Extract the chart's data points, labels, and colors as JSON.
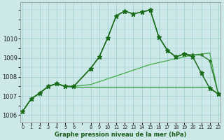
{
  "background_color": "#cce8e8",
  "grid_color": "#99cccc",
  "title": "Graphe pression niveau de la mer (hPa)",
  "xlim": [
    -0.3,
    23.3
  ],
  "ylim": [
    1005.6,
    1011.9
  ],
  "yticks": [
    1006,
    1007,
    1008,
    1009,
    1010
  ],
  "xticks": [
    0,
    1,
    2,
    3,
    4,
    5,
    6,
    8,
    9,
    10,
    11,
    12,
    13,
    14,
    15,
    16,
    17,
    18,
    19,
    20,
    21,
    22,
    23
  ],
  "line_main": {
    "x": [
      0,
      1,
      2,
      3,
      4,
      5,
      6,
      8,
      9,
      10,
      11,
      12,
      13,
      14,
      15,
      16,
      17,
      18,
      19,
      20,
      21,
      22,
      23
    ],
    "y": [
      1006.2,
      1006.85,
      1007.15,
      1007.5,
      1007.65,
      1007.5,
      1007.5,
      1008.45,
      1009.05,
      1010.05,
      1011.2,
      1011.45,
      1011.3,
      1011.4,
      1011.5,
      1010.1,
      1009.4,
      1009.05,
      1009.2,
      1009.05,
      1008.2,
      1007.4,
      1007.1
    ],
    "color": "#1a6b1a",
    "lw": 1.1,
    "marker": "*",
    "ms": 4.5
  },
  "line_second": {
    "x": [
      0,
      1,
      2,
      3,
      4,
      5,
      6,
      8,
      9,
      10,
      11,
      12,
      13,
      14,
      15,
      16,
      17,
      18,
      19,
      20,
      21,
      22,
      23
    ],
    "y": [
      1006.2,
      1006.85,
      1007.15,
      1007.5,
      1007.65,
      1007.5,
      1007.5,
      1008.45,
      1009.05,
      1010.05,
      1011.2,
      1011.45,
      1011.3,
      1011.4,
      1011.5,
      1010.1,
      1009.4,
      1009.05,
      1009.2,
      1009.15,
      1009.15,
      1008.85,
      1007.1
    ],
    "color": "#2a7a2a",
    "lw": 1.0,
    "marker": "D",
    "ms": 2.5
  },
  "line_flat": {
    "x": [
      0,
      1,
      2,
      3,
      4,
      5,
      6,
      8,
      9,
      10,
      11,
      12,
      13,
      14,
      15,
      16,
      17,
      18,
      19,
      20,
      21,
      22,
      23
    ],
    "y": [
      1006.2,
      1006.85,
      1007.15,
      1007.5,
      1007.65,
      1007.5,
      1007.45,
      1007.45,
      1007.45,
      1007.45,
      1007.45,
      1007.45,
      1007.45,
      1007.45,
      1007.45,
      1007.45,
      1007.45,
      1007.45,
      1007.45,
      1007.45,
      1007.45,
      1007.45,
      1007.1
    ],
    "color": "#339933",
    "lw": 0.9
  },
  "line_diag": {
    "x": [
      0,
      1,
      2,
      3,
      4,
      5,
      6,
      8,
      9,
      10,
      11,
      12,
      13,
      14,
      15,
      16,
      17,
      18,
      19,
      20,
      21,
      22,
      23
    ],
    "y": [
      1006.2,
      1006.85,
      1007.15,
      1007.5,
      1007.65,
      1007.5,
      1007.5,
      1007.6,
      1007.75,
      1007.9,
      1008.05,
      1008.2,
      1008.35,
      1008.5,
      1008.65,
      1008.75,
      1008.85,
      1008.95,
      1009.05,
      1009.15,
      1009.2,
      1009.25,
      1007.1
    ],
    "color": "#44aa44",
    "lw": 0.9
  }
}
